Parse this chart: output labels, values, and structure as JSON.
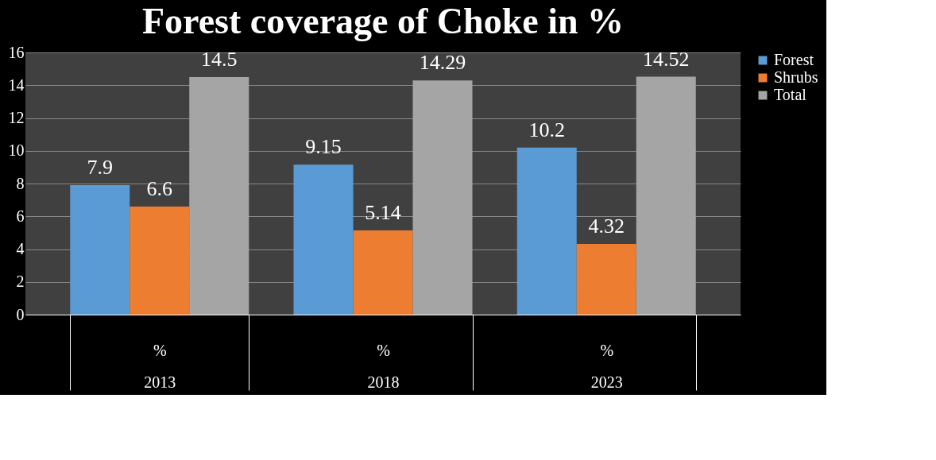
{
  "chart_data": {
    "type": "bar",
    "title": "Forest coverage of Choke in %",
    "categories": [
      "%\n2013",
      "%\n2018",
      "%\n2023"
    ],
    "series": [
      {
        "name": "Forest",
        "color": "#5b9bd5",
        "values": [
          7.9,
          9.15,
          10.2
        ]
      },
      {
        "name": "Shrubs",
        "color": "#ed7d31",
        "values": [
          6.6,
          5.14,
          4.32
        ]
      },
      {
        "name": "Total",
        "color": "#a5a5a5",
        "values": [
          14.5,
          14.29,
          14.52
        ]
      }
    ],
    "ylim": [
      0,
      16
    ],
    "yticks": [
      0,
      2,
      4,
      6,
      8,
      10,
      12,
      14,
      16
    ],
    "grid": "y",
    "legend": "right",
    "data_labels": true
  }
}
